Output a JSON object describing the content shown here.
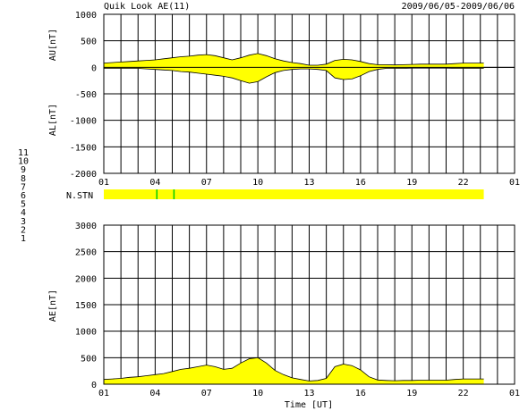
{
  "chart_data": [
    {
      "type": "area",
      "panel": "AU/AL",
      "title": "Quik Look AE(11)",
      "date_range": "2009/06/05-2009/06/06",
      "ylabel_upper": "AU[nT]",
      "ylabel_lower": "AL[nT]",
      "ylim": [
        -2000,
        1000
      ],
      "y_ticks": [
        "1000",
        "500",
        "0",
        "-500",
        "-1000",
        "-1500",
        "-2000"
      ],
      "xlim": [
        1,
        25
      ],
      "x_ticks": [
        "01",
        "04",
        "07",
        "10",
        "13",
        "16",
        "19",
        "22",
        "01"
      ],
      "grid": true,
      "fill_color": "#ffff00",
      "outline_color": "#000000",
      "hours": [
        1,
        1.5,
        2,
        2.5,
        3,
        3.5,
        4,
        4.5,
        5,
        5.5,
        6,
        6.5,
        7,
        7.5,
        8,
        8.5,
        9,
        9.5,
        10,
        10.5,
        11,
        11.5,
        12,
        12.5,
        13,
        13.5,
        14,
        14.5,
        15,
        15.5,
        16,
        16.5,
        17,
        17.5,
        18,
        18.5,
        19,
        19.5,
        20,
        20.5,
        21,
        21.5,
        22,
        22.5,
        23,
        23.2
      ],
      "AU": [
        80,
        90,
        100,
        110,
        120,
        130,
        140,
        160,
        180,
        200,
        210,
        230,
        240,
        220,
        180,
        140,
        180,
        230,
        260,
        220,
        160,
        120,
        90,
        70,
        40,
        40,
        60,
        130,
        150,
        140,
        110,
        70,
        50,
        50,
        45,
        50,
        55,
        60,
        60,
        60,
        60,
        70,
        80,
        80,
        80,
        80
      ],
      "AL": [
        -20,
        -20,
        -20,
        -20,
        -20,
        -30,
        -40,
        -50,
        -60,
        -80,
        -90,
        -110,
        -130,
        -150,
        -170,
        -200,
        -250,
        -300,
        -270,
        -180,
        -100,
        -60,
        -40,
        -30,
        -30,
        -40,
        -60,
        -200,
        -230,
        -220,
        -160,
        -80,
        -40,
        -20,
        -20,
        -20,
        -15,
        -15,
        -15,
        -15,
        -15,
        -20,
        -20,
        -20,
        -20,
        -20
      ]
    },
    {
      "type": "bar",
      "panel": "station-count",
      "ylabel": "N.STN",
      "bar_color": "#ffff00",
      "marker_color": "#00cc00",
      "coverage_hours": [
        1,
        23.2
      ],
      "station_change_hours": [
        4.1,
        5.1
      ],
      "legend_entries": [
        {
          "label": "11",
          "color": "#00dddd"
        },
        {
          "label": "10",
          "color": "#ff00ff"
        },
        {
          "label": "9",
          "color": "#0000ff"
        },
        {
          "label": "8",
          "color": "#ffcc66"
        },
        {
          "label": "7",
          "color": "#00bb00"
        },
        {
          "label": "6",
          "color": "#ff0000"
        },
        {
          "label": "5",
          "color": "#bbbbbb"
        },
        {
          "label": "4",
          "color": "#888888"
        },
        {
          "label": "3",
          "color": "#00aaaa"
        },
        {
          "label": "2",
          "color": "#aa00aa"
        },
        {
          "label": "1",
          "color": "#0000aa"
        }
      ]
    },
    {
      "type": "area",
      "panel": "AE",
      "xlabel": "Time [UT]",
      "ylabel": "AE[nT]",
      "ylim": [
        0,
        3000
      ],
      "y_ticks": [
        "3000",
        "2500",
        "2000",
        "1500",
        "1000",
        "500",
        "0"
      ],
      "xlim": [
        1,
        25
      ],
      "x_ticks": [
        "01",
        "04",
        "07",
        "10",
        "13",
        "16",
        "19",
        "22",
        "01"
      ],
      "grid": true,
      "fill_color": "#ffff00",
      "outline_color": "#000000",
      "hours": [
        1,
        1.5,
        2,
        2.5,
        3,
        3.5,
        4,
        4.5,
        5,
        5.5,
        6,
        6.5,
        7,
        7.5,
        8,
        8.5,
        9,
        9.5,
        10,
        10.5,
        11,
        11.5,
        12,
        12.5,
        13,
        13.5,
        14,
        14.5,
        15,
        15.5,
        16,
        16.5,
        17,
        17.5,
        18,
        18.5,
        19,
        19.5,
        20,
        20.5,
        21,
        21.5,
        22,
        22.5,
        23,
        23.2
      ],
      "AE": [
        90,
        100,
        110,
        130,
        140,
        160,
        180,
        200,
        240,
        280,
        300,
        330,
        360,
        330,
        280,
        300,
        400,
        480,
        500,
        400,
        260,
        180,
        120,
        90,
        60,
        70,
        110,
        330,
        380,
        350,
        270,
        140,
        80,
        70,
        65,
        70,
        70,
        75,
        75,
        75,
        75,
        90,
        100,
        100,
        100,
        100
      ]
    }
  ]
}
